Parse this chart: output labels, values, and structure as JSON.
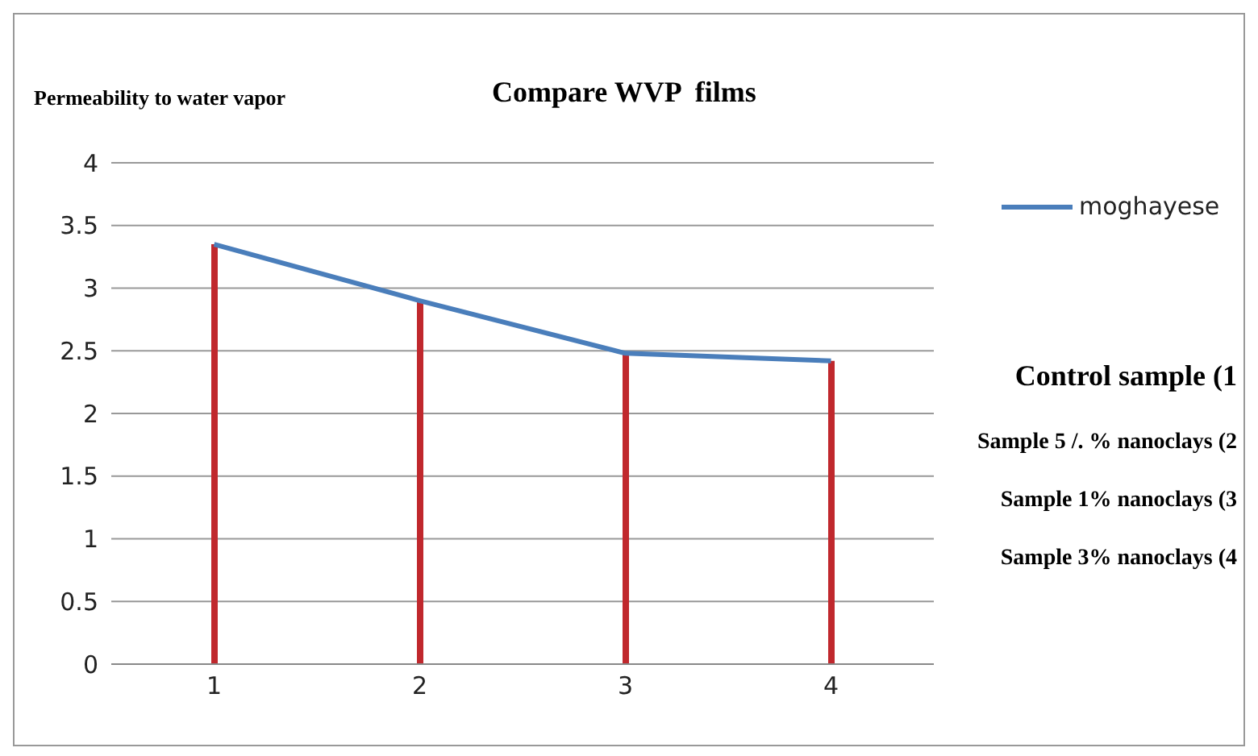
{
  "chart_data": {
    "type": "line",
    "title": "Compare WVP  films",
    "ylabel": "Permeability to water vapor",
    "categories": [
      "1",
      "2",
      "3",
      "4"
    ],
    "series": [
      {
        "type": "bar",
        "color": "#c0282d",
        "values": [
          3.35,
          2.9,
          2.48,
          2.42
        ]
      },
      {
        "name": "moghayese",
        "color": "#4a7ebb",
        "values": [
          3.35,
          2.9,
          2.48,
          2.42
        ]
      }
    ],
    "ylim": [
      0,
      4
    ],
    "yticks": [
      0,
      0.5,
      1,
      1.5,
      2,
      2.5,
      3,
      3.5,
      4
    ],
    "grid": "y",
    "legend": "top right",
    "marker": "none",
    "annotations": [
      "Control sample (1",
      "Sample 5 /. % nanoclays (2",
      "Sample 1% nanoclays (3",
      "Sample 3% nanoclays (4"
    ]
  }
}
